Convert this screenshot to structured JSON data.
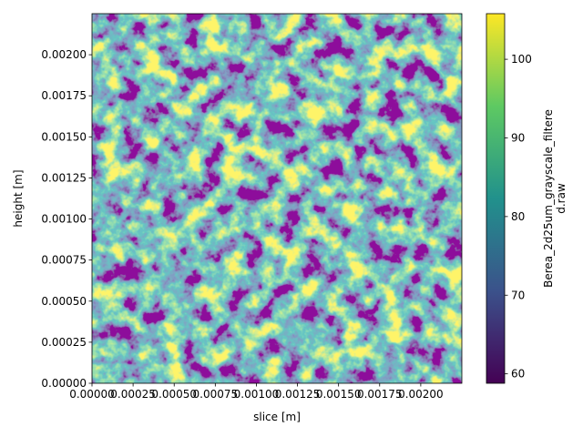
{
  "chart_data": {
    "type": "heatmap",
    "xlabel": "slice [m]",
    "ylabel": "height [m]",
    "colorbar_label": [
      "Berea_2d25um_grayscale_filtere",
      "d.raw"
    ],
    "xlim": [
      0,
      0.00225
    ],
    "ylim": [
      0,
      0.00225
    ],
    "clim": [
      58.8,
      105.8
    ],
    "xticks": [
      {
        "value": 0,
        "label": "0.00000"
      },
      {
        "value": 0.00025,
        "label": "0.00025"
      },
      {
        "value": 0.0005,
        "label": "0.00050"
      },
      {
        "value": 0.00075,
        "label": "0.00075"
      },
      {
        "value": 0.001,
        "label": "0.00100"
      },
      {
        "value": 0.00125,
        "label": "0.00125"
      },
      {
        "value": 0.0015,
        "label": "0.00150"
      },
      {
        "value": 0.00175,
        "label": "0.00175"
      },
      {
        "value": 0.002,
        "label": "0.00200"
      }
    ],
    "yticks": [
      {
        "value": 0,
        "label": "0.00000"
      },
      {
        "value": 0.00025,
        "label": "0.00025"
      },
      {
        "value": 0.0005,
        "label": "0.00050"
      },
      {
        "value": 0.00075,
        "label": "0.00075"
      },
      {
        "value": 0.001,
        "label": "0.00100"
      },
      {
        "value": 0.00125,
        "label": "0.00125"
      },
      {
        "value": 0.0015,
        "label": "0.00150"
      },
      {
        "value": 0.00175,
        "label": "0.00175"
      },
      {
        "value": 0.002,
        "label": "0.00200"
      }
    ],
    "cticks": [
      60,
      70,
      80,
      90,
      100
    ]
  }
}
